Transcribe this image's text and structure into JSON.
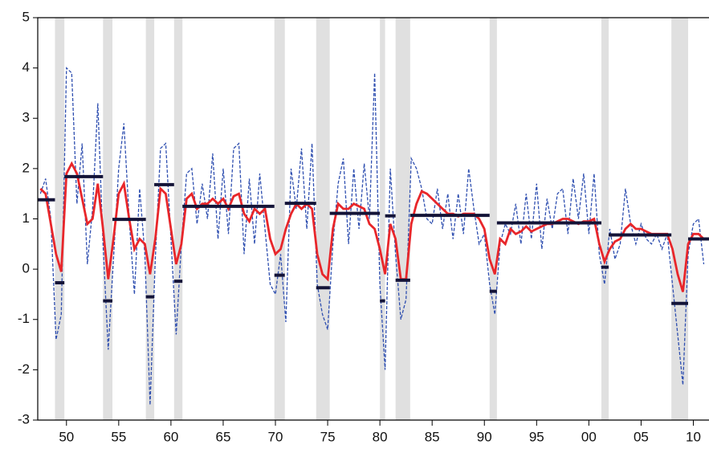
{
  "chart_data": {
    "type": "line",
    "x": [
      1947.5,
      1948,
      1948.5,
      1949,
      1949.5,
      1950,
      1950.5,
      1951,
      1951.5,
      1952,
      1952.5,
      1953,
      1953.5,
      1954,
      1954.5,
      1955,
      1955.5,
      1956,
      1956.5,
      1957,
      1957.5,
      1958,
      1958.5,
      1959,
      1959.5,
      1960,
      1960.5,
      1961,
      1961.5,
      1962,
      1962.5,
      1963,
      1963.5,
      1964,
      1964.5,
      1965,
      1965.5,
      1966,
      1966.5,
      1967,
      1967.5,
      1968,
      1968.5,
      1969,
      1969.5,
      1970,
      1970.5,
      1971,
      1971.5,
      1972,
      1972.5,
      1973,
      1973.5,
      1974,
      1974.5,
      1975,
      1975.5,
      1976,
      1976.5,
      1977,
      1977.5,
      1978,
      1978.5,
      1979,
      1979.5,
      1980,
      1980.5,
      1981,
      1981.5,
      1982,
      1982.5,
      1983,
      1983.5,
      1984,
      1984.5,
      1985,
      1985.5,
      1986,
      1986.5,
      1987,
      1987.5,
      1988,
      1988.5,
      1989,
      1989.5,
      1990,
      1990.5,
      1991,
      1991.5,
      1992,
      1992.5,
      1993,
      1993.5,
      1994,
      1994.5,
      1995,
      1995.5,
      1996,
      1996.5,
      1997,
      1997.5,
      1998,
      1998.5,
      1999,
      1999.5,
      2000,
      2000.5,
      2001,
      2001.5,
      2002,
      2002.5,
      2003,
      2003.5,
      2004,
      2004.5,
      2005,
      2005.5,
      2006,
      2006.5,
      2007,
      2007.5,
      2008,
      2008.5,
      2009,
      2009.5,
      2010,
      2010.5,
      2011
    ],
    "series": [
      {
        "color": "#2f4fb0",
        "dash": true,
        "values": [
          1.5,
          1.8,
          1.0,
          -1.4,
          -0.9,
          4.0,
          3.9,
          1.3,
          2.5,
          0.1,
          1.2,
          3.3,
          0.5,
          -1.6,
          0.2,
          2.0,
          2.9,
          1.0,
          -0.5,
          1.6,
          0.3,
          -2.7,
          0.2,
          2.4,
          2.5,
          0.6,
          -1.3,
          0.5,
          1.9,
          2.0,
          0.9,
          1.7,
          1.0,
          2.3,
          0.6,
          2.0,
          0.7,
          2.4,
          2.5,
          0.3,
          1.8,
          0.5,
          1.9,
          0.8,
          -0.3,
          -0.5,
          0.3,
          -1.05,
          2.0,
          1.2,
          2.4,
          0.8,
          2.5,
          -0.3,
          -0.9,
          -1.2,
          0.5,
          1.7,
          2.2,
          0.5,
          2.0,
          0.8,
          2.1,
          1.0,
          3.9,
          -0.3,
          -2.0,
          2.0,
          0.3,
          -1.0,
          -0.6,
          2.2,
          2.0,
          1.6,
          1.0,
          0.9,
          1.6,
          0.8,
          1.5,
          0.6,
          1.5,
          0.7,
          2.0,
          1.2,
          0.5,
          0.7,
          -0.3,
          -0.9,
          0.5,
          0.9,
          0.7,
          1.3,
          0.5,
          1.5,
          0.6,
          1.7,
          0.4,
          1.4,
          0.8,
          1.5,
          1.6,
          0.7,
          1.8,
          1.0,
          1.9,
          0.7,
          1.9,
          0.3,
          -0.3,
          0.8,
          0.2,
          0.5,
          1.6,
          0.9,
          0.5,
          0.9,
          0.6,
          0.5,
          0.7,
          0.4,
          0.7,
          -0.3,
          -1.3,
          -2.3,
          0.3,
          0.9,
          1.0,
          0.1
        ]
      },
      {
        "color": "#e8262a",
        "dash": false,
        "values": [
          1.6,
          1.5,
          0.9,
          0.3,
          -0.05,
          1.9,
          2.1,
          1.9,
          1.4,
          0.9,
          1.0,
          1.7,
          0.8,
          -0.2,
          0.6,
          1.5,
          1.7,
          1.0,
          0.4,
          0.6,
          0.5,
          -0.1,
          0.6,
          1.6,
          1.5,
          0.8,
          0.1,
          0.5,
          1.4,
          1.5,
          1.2,
          1.3,
          1.3,
          1.4,
          1.3,
          1.4,
          1.2,
          1.45,
          1.5,
          1.1,
          0.95,
          1.2,
          1.1,
          1.2,
          0.6,
          0.3,
          0.4,
          0.8,
          1.1,
          1.3,
          1.2,
          1.3,
          1.2,
          0.3,
          -0.1,
          -0.2,
          0.8,
          1.3,
          1.2,
          1.2,
          1.3,
          1.25,
          1.2,
          0.9,
          0.8,
          0.4,
          -0.1,
          0.9,
          0.6,
          -0.2,
          -0.2,
          0.9,
          1.3,
          1.55,
          1.5,
          1.4,
          1.3,
          1.2,
          1.1,
          1.1,
          1.05,
          1.1,
          1.1,
          1.1,
          1.0,
          0.8,
          0.2,
          -0.1,
          0.6,
          0.5,
          0.8,
          0.7,
          0.75,
          0.85,
          0.75,
          0.8,
          0.85,
          0.9,
          0.9,
          0.95,
          1.0,
          1.0,
          0.95,
          0.9,
          0.95,
          0.95,
          1.0,
          0.5,
          0.15,
          0.4,
          0.55,
          0.6,
          0.8,
          0.9,
          0.8,
          0.8,
          0.75,
          0.7,
          0.7,
          0.7,
          0.7,
          0.4,
          -0.1,
          -0.45,
          0.5,
          0.7,
          0.7,
          0.6
        ]
      }
    ],
    "segment_color": "#141438",
    "segments": [
      {
        "start": 1947.25,
        "end": 1948.9,
        "value": 1.38
      },
      {
        "start": 1948.9,
        "end": 1949.8,
        "value": -0.27
      },
      {
        "start": 1949.8,
        "end": 1953.5,
        "value": 1.84
      },
      {
        "start": 1953.5,
        "end": 1954.4,
        "value": -0.63
      },
      {
        "start": 1954.4,
        "end": 1957.6,
        "value": 0.99
      },
      {
        "start": 1957.6,
        "end": 1958.4,
        "value": -0.55
      },
      {
        "start": 1958.4,
        "end": 1960.3,
        "value": 1.68
      },
      {
        "start": 1960.3,
        "end": 1961.1,
        "value": -0.24
      },
      {
        "start": 1961.1,
        "end": 1969.9,
        "value": 1.25
      },
      {
        "start": 1969.9,
        "end": 1970.9,
        "value": -0.12
      },
      {
        "start": 1970.9,
        "end": 1973.9,
        "value": 1.31
      },
      {
        "start": 1973.9,
        "end": 1975.2,
        "value": -0.37
      },
      {
        "start": 1975.2,
        "end": 1980.0,
        "value": 1.11
      },
      {
        "start": 1980.0,
        "end": 1980.5,
        "value": -0.63
      },
      {
        "start": 1980.5,
        "end": 1981.5,
        "value": 1.06
      },
      {
        "start": 1981.5,
        "end": 1982.9,
        "value": -0.22
      },
      {
        "start": 1982.9,
        "end": 1990.5,
        "value": 1.07
      },
      {
        "start": 1990.5,
        "end": 1991.2,
        "value": -0.44
      },
      {
        "start": 1991.2,
        "end": 2001.2,
        "value": 0.92
      },
      {
        "start": 2001.2,
        "end": 2001.9,
        "value": 0.04
      },
      {
        "start": 2001.9,
        "end": 2007.9,
        "value": 0.68
      },
      {
        "start": 2007.9,
        "end": 2009.5,
        "value": -0.68
      },
      {
        "start": 2009.5,
        "end": 2011.5,
        "value": 0.6
      }
    ],
    "shade_color": "#e0e0e0",
    "shaded_periods": [
      [
        1948.9,
        1949.8
      ],
      [
        1953.5,
        1954.4
      ],
      [
        1957.6,
        1958.4
      ],
      [
        1960.3,
        1961.1
      ],
      [
        1969.9,
        1970.9
      ],
      [
        1973.9,
        1975.2
      ],
      [
        1980.0,
        1980.5
      ],
      [
        1981.5,
        1982.9
      ],
      [
        1990.5,
        1991.2
      ],
      [
        2001.2,
        2001.9
      ],
      [
        2007.9,
        2009.5
      ]
    ],
    "xlim": [
      1947.25,
      2011.5
    ],
    "xticks": [
      {
        "value": 1950,
        "label": "50"
      },
      {
        "value": 1955,
        "label": "55"
      },
      {
        "value": 1960,
        "label": "60"
      },
      {
        "value": 1965,
        "label": "65"
      },
      {
        "value": 1970,
        "label": "70"
      },
      {
        "value": 1975,
        "label": "75"
      },
      {
        "value": 1980,
        "label": "80"
      },
      {
        "value": 1985,
        "label": "85"
      },
      {
        "value": 1990,
        "label": "90"
      },
      {
        "value": 1995,
        "label": "95"
      },
      {
        "value": 2000,
        "label": "00"
      },
      {
        "value": 2005,
        "label": "05"
      },
      {
        "value": 2010,
        "label": "10"
      }
    ],
    "ylim": [
      -3,
      5
    ],
    "yticks": [
      -3,
      -2,
      -1,
      0,
      1,
      2,
      3,
      4,
      5
    ]
  }
}
